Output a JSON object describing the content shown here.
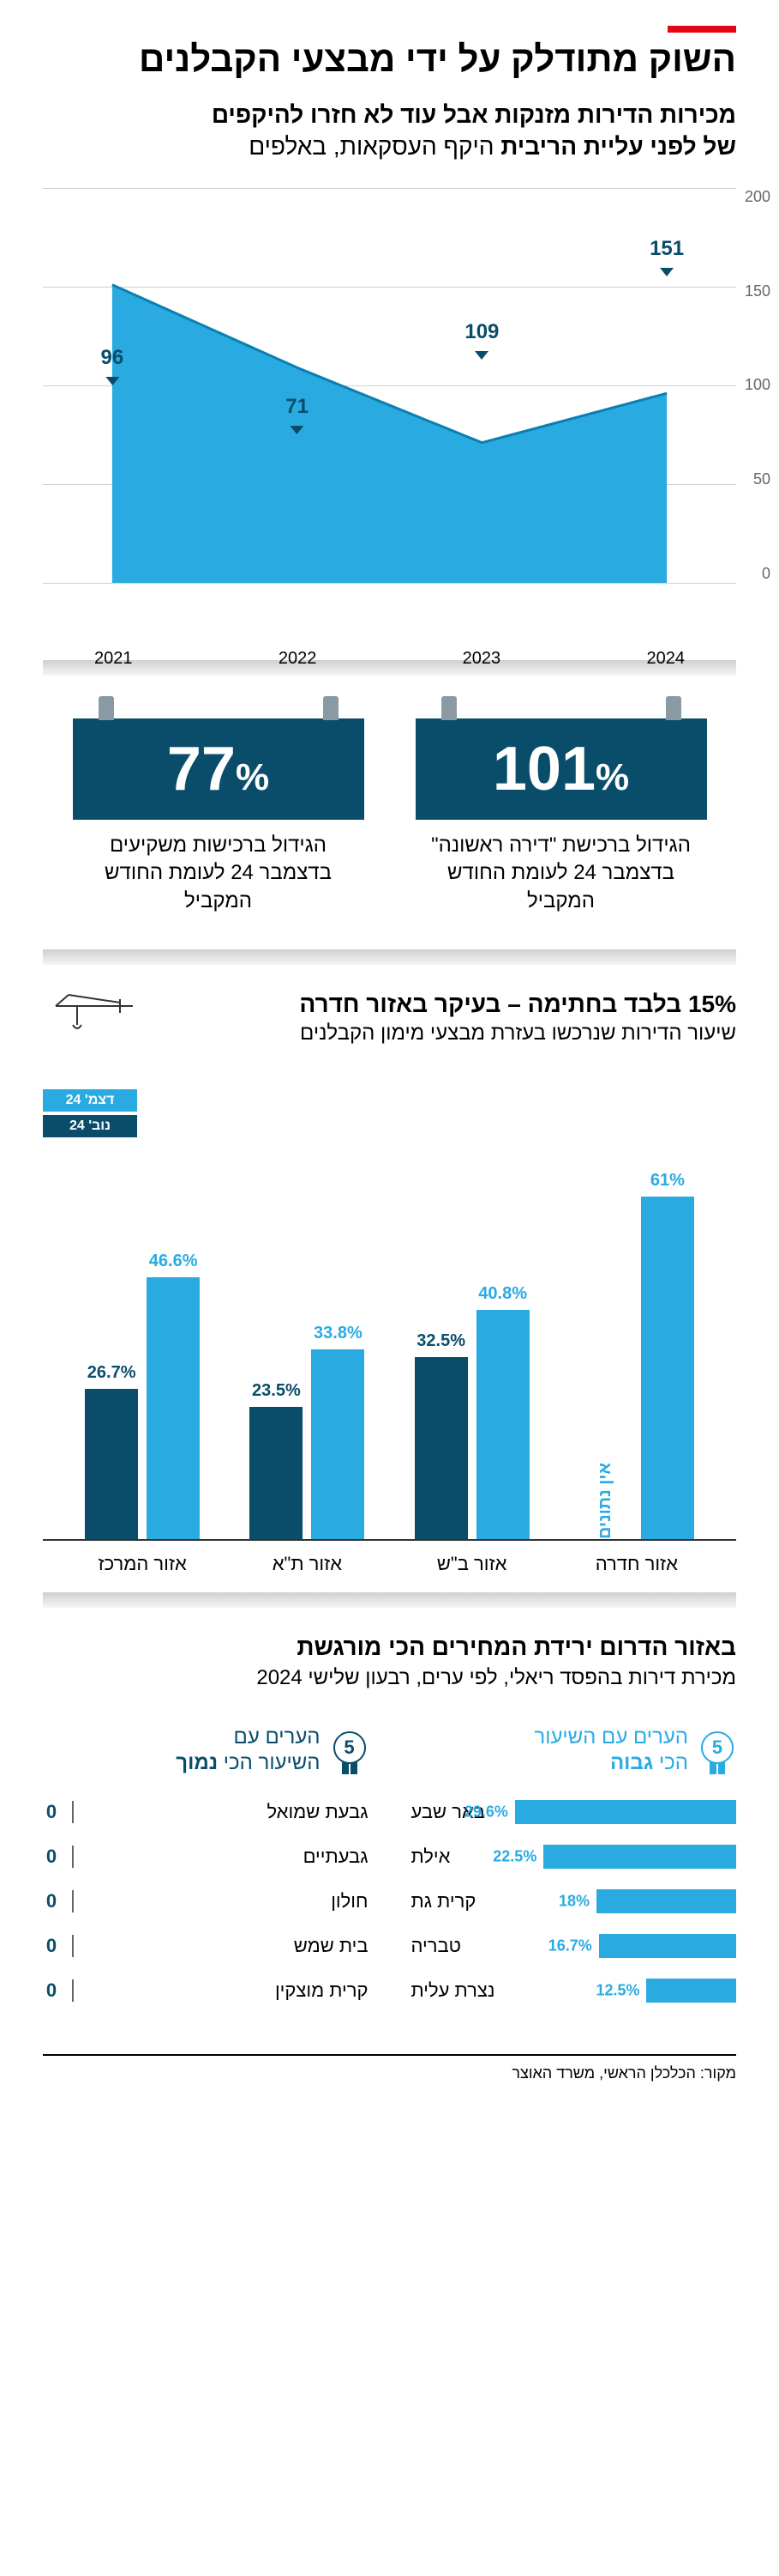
{
  "header": {
    "title": "השוק מתודלק על ידי מבצעי הקבלנים",
    "subtitle_line1": "מכירות הדירות מזנקות אבל עוד לא חזרו להיקפים",
    "subtitle_line2_bold": "של לפני עליית הריבית",
    "subtitle_line2_light": " היקף העסקאות, באלפים"
  },
  "area_chart": {
    "type": "area",
    "ylim": [
      0,
      200
    ],
    "ytick_step": 50,
    "yticks": [
      "200",
      "150",
      "100",
      "50",
      "0"
    ],
    "categories": [
      "2021",
      "2022",
      "2023",
      "2024"
    ],
    "values": [
      151,
      109,
      71,
      96
    ],
    "fill_color": "#29abe2",
    "stroke_color": "#0a7fb0",
    "label_color": "#0a4d6b",
    "grid_color": "#d0d0d0",
    "label_fontsize": 24
  },
  "stats": [
    {
      "value": "101",
      "pct": "%",
      "desc": "הגידול ברכישת \"דירה ראשונה\" בדצמבר 24 לעומת החודש המקביל"
    },
    {
      "value": "77",
      "pct": "%",
      "desc": "הגידול ברכישות משקיעים בדצמבר 24 לעומת החודש המקביל"
    }
  ],
  "bar_chart": {
    "title": "15% בלבד בחתימה – בעיקר באזור חדרה",
    "subtitle": "שיעור הדירות שנרכשו בעזרת מבצעי מימון הקבלנים",
    "legend": {
      "dec": "דצמ' 24",
      "nov": "נוב' 24"
    },
    "type": "bar",
    "color_dec": "#29abe2",
    "color_nov": "#0a4d6b",
    "no_data_text": "אין נתונים",
    "max": 70,
    "groups": [
      {
        "label": "אזור חדרה",
        "dec": 61,
        "nov": null
      },
      {
        "label": "אזור ב\"ש",
        "dec": 40.8,
        "nov": 32.5
      },
      {
        "label": "אזור ת\"א",
        "dec": 33.8,
        "nov": 23.5
      },
      {
        "label": "אזור המרכז",
        "dec": 46.6,
        "nov": 26.7
      }
    ]
  },
  "city_section": {
    "title": "באזור הדרום ירידת המחירים הכי מורגשת",
    "subtitle": "מכירת דירות בהפסד ריאלי, לפי ערים, רבעון שלישי 2024",
    "badge_num": "5",
    "high": {
      "title_line1": "הערים עם השיעור",
      "title_line2": "הכי ",
      "title_em": "גבוה",
      "max": 32,
      "rows": [
        {
          "name": "באר שבע",
          "pct": 29.6
        },
        {
          "name": "אילת",
          "pct": 22.5
        },
        {
          "name": "קרית גת",
          "pct": 18
        },
        {
          "name": "טבריה",
          "pct": 16.7
        },
        {
          "name": "נצרת עלית",
          "pct": 12.5
        }
      ]
    },
    "low": {
      "title_line1": "הערים עם",
      "title_line2": "השיעור הכי ",
      "title_em": "נמוך",
      "rows": [
        {
          "name": "גבעת שמואל",
          "val": 0
        },
        {
          "name": "גבעתיים",
          "val": 0
        },
        {
          "name": "חולון",
          "val": 0
        },
        {
          "name": "בית שמש",
          "val": 0
        },
        {
          "name": "קרית מוצקין",
          "val": 0
        }
      ]
    }
  },
  "source": "מקור: הכלכלן הראשי, משרד האוצר"
}
